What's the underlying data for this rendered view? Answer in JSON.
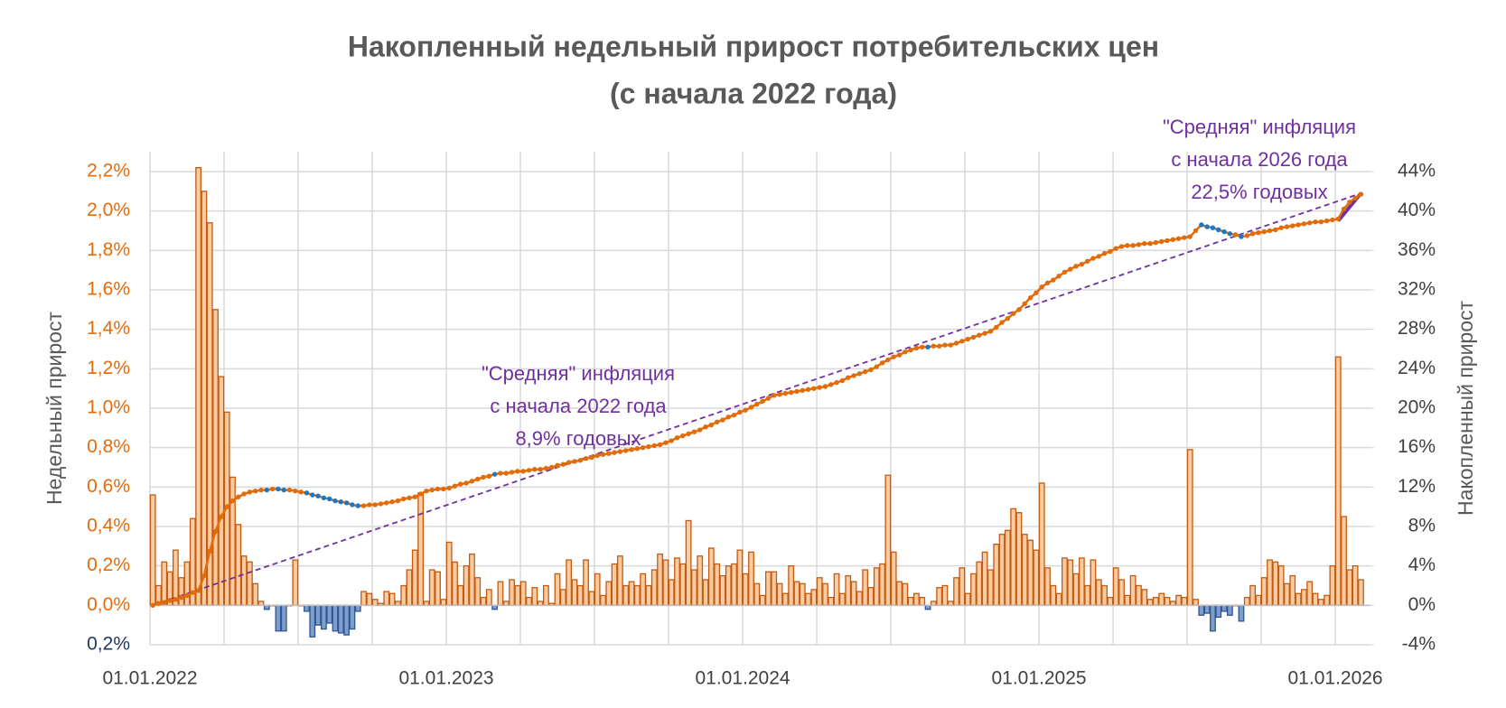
{
  "chart_data": {
    "type": "bar_line",
    "title": [
      "Накопленный недельный прирост потребительских цен",
      "(с начала 2022 года)"
    ],
    "y_label": "Недельный прирост",
    "y2_label": "Накопленный прирост",
    "categories": [
      "01.01.2022",
      null,
      null,
      null,
      null,
      null,
      null,
      null,
      null,
      null,
      null,
      null,
      null,
      null,
      null,
      null,
      null,
      null,
      null,
      null,
      null,
      null,
      null,
      null,
      null,
      null,
      null,
      null,
      null,
      null,
      null,
      null,
      null,
      null,
      null,
      null,
      null,
      null,
      null,
      null,
      null,
      null,
      null,
      null,
      null,
      null,
      null,
      null,
      null,
      null,
      null,
      null,
      "01.01.2023",
      null,
      null,
      null,
      null,
      null,
      null,
      null,
      null,
      null,
      null,
      null,
      null,
      null,
      null,
      null,
      null,
      null,
      null,
      null,
      null,
      null,
      null,
      null,
      null,
      null,
      null,
      null,
      null,
      null,
      null,
      null,
      null,
      null,
      null,
      null,
      null,
      null,
      null,
      null,
      null,
      null,
      null,
      null,
      null,
      null,
      null,
      null,
      null,
      null,
      null,
      null,
      "01.01.2024",
      null,
      null,
      null,
      null,
      null,
      null,
      null,
      null,
      null,
      null,
      null,
      null,
      null,
      null,
      null,
      null,
      null,
      null,
      null,
      null,
      null,
      null,
      null,
      null,
      null,
      null,
      null,
      null,
      null,
      null,
      null,
      null,
      null,
      null,
      null,
      null,
      null,
      null,
      null,
      null,
      null,
      null,
      null,
      null,
      null,
      null,
      null,
      null,
      null,
      null,
      null,
      "01.01.2025",
      null,
      null,
      null,
      null,
      null,
      null,
      null,
      null,
      null,
      null,
      null,
      null,
      null,
      null,
      null,
      null,
      null,
      null,
      null,
      null,
      null,
      null,
      null,
      null,
      null,
      null,
      null,
      null,
      null,
      null,
      null,
      null,
      null,
      null,
      null,
      null,
      null,
      null,
      null,
      null,
      null,
      null,
      null,
      null,
      null,
      null,
      null,
      null,
      null,
      null,
      null,
      "01.01.2026",
      null,
      null,
      null,
      null
    ],
    "series": [
      {
        "axis": "y",
        "color": "#f8cba0",
        "stroke": "#c55a11",
        "negative_color": "#7f9dc9",
        "negative_stroke": "#2e5597",
        "values": [
          0.56,
          0.1,
          0.22,
          0.17,
          0.28,
          0.14,
          0.22,
          0.44,
          2.22,
          2.1,
          1.94,
          1.5,
          1.16,
          0.98,
          0.65,
          0.41,
          0.25,
          0.22,
          0.11,
          0.02,
          -0.02,
          0.0,
          -0.13,
          -0.13,
          0.0,
          0.23,
          0.0,
          -0.03,
          -0.16,
          -0.1,
          -0.12,
          -0.09,
          -0.13,
          -0.14,
          -0.15,
          -0.12,
          -0.03,
          0.07,
          0.06,
          0.03,
          0.01,
          0.07,
          0.06,
          0.02,
          0.1,
          0.18,
          0.28,
          0.57,
          0.02,
          0.18,
          0.17,
          0.03,
          0.32,
          0.22,
          0.1,
          0.2,
          0.26,
          0.14,
          0.04,
          0.08,
          -0.02,
          0.12,
          0.02,
          0.13,
          0.1,
          0.12,
          0.04,
          0.09,
          0.02,
          0.1,
          0.01,
          0.16,
          0.08,
          0.23,
          0.13,
          0.1,
          0.23,
          0.07,
          0.16,
          0.05,
          0.12,
          0.21,
          0.25,
          0.1,
          0.12,
          0.1,
          0.16,
          0.1,
          0.18,
          0.26,
          0.23,
          0.13,
          0.24,
          0.21,
          0.43,
          0.18,
          0.25,
          0.13,
          0.29,
          0.21,
          0.15,
          0.2,
          0.21,
          0.28,
          0.16,
          0.27,
          0.11,
          0.05,
          0.17,
          0.17,
          0.11,
          0.06,
          0.2,
          0.12,
          0.11,
          0.06,
          0.08,
          0.14,
          0.11,
          0.04,
          0.16,
          0.06,
          0.15,
          0.12,
          0.07,
          0.18,
          0.09,
          0.19,
          0.21,
          0.66,
          0.27,
          0.12,
          0.11,
          0.04,
          0.06,
          0.04,
          -0.02,
          0.02,
          0.09,
          0.1,
          0.02,
          0.14,
          0.19,
          0.06,
          0.16,
          0.22,
          0.27,
          0.18,
          0.31,
          0.36,
          0.38,
          0.49,
          0.47,
          0.36,
          0.33,
          0.28,
          0.62,
          0.19,
          0.1,
          0.06,
          0.24,
          0.23,
          0.16,
          0.24,
          0.1,
          0.23,
          0.13,
          0.1,
          0.04,
          0.19,
          0.13,
          0.05,
          0.15,
          0.1,
          0.08,
          0.03,
          0.04,
          0.06,
          0.04,
          0.02,
          0.05,
          0.04,
          0.79,
          0.03,
          -0.05,
          -0.04,
          -0.13,
          -0.06,
          -0.03,
          -0.05,
          0.0,
          -0.08,
          0.04,
          0.1,
          0.05,
          0.14,
          0.23,
          0.22,
          0.2,
          0.11,
          0.15,
          0.06,
          0.08,
          0.12,
          0.06,
          0.03,
          0.05,
          0.2,
          1.26,
          0.45,
          0.18,
          0.2,
          0.13
        ]
      },
      {
        "axis": "y2",
        "color": "#e36c0a",
        "negative_color": "#1f77c4",
        "values": [
          0,
          0.2,
          0.3,
          0.5,
          0.6,
          0.8,
          1.0,
          1.3,
          1.5,
          3.0,
          5.5,
          7.5,
          9.0,
          10.0,
          10.6,
          11.0,
          11.3,
          11.5,
          11.6,
          11.7,
          11.7,
          11.8,
          11.8,
          11.7,
          11.7,
          11.6,
          11.5,
          11.4,
          11.2,
          11.1,
          10.9,
          10.8,
          10.6,
          10.5,
          10.4,
          10.2,
          10.1,
          10.1,
          10.2,
          10.2,
          10.3,
          10.4,
          10.5,
          10.6,
          10.8,
          10.9,
          11.0,
          11.3,
          11.6,
          11.7,
          11.8,
          11.8,
          11.9,
          12.1,
          12.3,
          12.4,
          12.6,
          12.8,
          13.0,
          13.1,
          13.3,
          13.4,
          13.4,
          13.5,
          13.6,
          13.6,
          13.7,
          13.8,
          13.8,
          13.9,
          14.0,
          14.2,
          14.3,
          14.5,
          14.6,
          14.7,
          14.9,
          15.0,
          15.2,
          15.3,
          15.4,
          15.5,
          15.6,
          15.7,
          15.8,
          15.9,
          16.0,
          16.1,
          16.2,
          16.3,
          16.5,
          16.7,
          17.0,
          17.2,
          17.4,
          17.6,
          17.8,
          18.1,
          18.3,
          18.6,
          18.8,
          19.1,
          19.3,
          19.6,
          19.8,
          20.1,
          20.4,
          20.7,
          21.0,
          21.3,
          21.4,
          21.5,
          21.6,
          21.7,
          21.8,
          21.9,
          22.0,
          22.1,
          22.2,
          22.4,
          22.6,
          22.8,
          23.1,
          23.3,
          23.5,
          23.7,
          23.9,
          24.2,
          24.6,
          24.9,
          25.2,
          25.4,
          25.7,
          25.9,
          26.1,
          26.2,
          26.2,
          26.3,
          26.3,
          26.4,
          26.4,
          26.6,
          26.8,
          27.0,
          27.2,
          27.4,
          27.6,
          27.8,
          28.2,
          28.7,
          29.1,
          29.6,
          30.0,
          30.6,
          31.2,
          31.7,
          32.3,
          32.7,
          33.0,
          33.4,
          33.8,
          34.1,
          34.4,
          34.6,
          34.9,
          35.2,
          35.4,
          35.7,
          35.9,
          36.2,
          36.4,
          36.5,
          36.5,
          36.6,
          36.7,
          36.7,
          36.8,
          36.9,
          37.0,
          37.1,
          37.2,
          37.3,
          37.4,
          38.0,
          38.6,
          38.4,
          38.3,
          38.1,
          37.9,
          37.7,
          37.6,
          37.4,
          37.5,
          37.7,
          37.8,
          37.9,
          38.0,
          38.1,
          38.3,
          38.4,
          38.5,
          38.6,
          38.7,
          38.8,
          38.9,
          38.9,
          39.0,
          39.1,
          39.2,
          40.2,
          40.9,
          41.3,
          41.7
        ]
      }
    ],
    "trends": [
      {
        "color": "#7030a0",
        "dashed": true,
        "from": [
          0,
          0
        ],
        "to": [
          212,
          41.8
        ]
      },
      {
        "color": "#7030a0",
        "dashed": false,
        "from": [
          208,
          39.0
        ],
        "to": [
          212,
          41.8
        ]
      }
    ],
    "annotations": [
      {
        "color": "#7030a0",
        "lines": [
          "\"Средняя\" инфляция",
          "с начала 2022 года",
          "8,9% годовых"
        ]
      },
      {
        "color": "#7030a0",
        "lines": [
          "\"Средняя\" инфляция",
          "с начала 2026 года",
          "22,5% годовых"
        ]
      }
    ],
    "ylim": [
      -0.2,
      2.2
    ],
    "yticks": [
      {
        "value": -0.2,
        "label": "0,2%"
      },
      {
        "value": 0,
        "label": "0,0%"
      },
      {
        "value": 0.2,
        "label": "0,2%"
      },
      {
        "value": 0.4,
        "label": "0,4%"
      },
      {
        "value": 0.6,
        "label": "0,6%"
      },
      {
        "value": 0.8,
        "label": "0,8%"
      },
      {
        "value": 1.0,
        "label": "1,0%"
      },
      {
        "value": 1.2,
        "label": "1,2%"
      },
      {
        "value": 1.4,
        "label": "1,4%"
      },
      {
        "value": 1.6,
        "label": "1,6%"
      },
      {
        "value": 1.8,
        "label": "1,8%"
      },
      {
        "value": 2.0,
        "label": "2,0%"
      },
      {
        "value": 2.2,
        "label": "2,2%"
      }
    ],
    "ytick_color": "#e46c0a",
    "ytick_negative_color": "#1f3864",
    "y2lim": [
      -4,
      44
    ],
    "y2ticks": [
      {
        "value": -4,
        "label": "-4%"
      },
      {
        "value": 0,
        "label": "0%"
      },
      {
        "value": 4,
        "label": "4%"
      },
      {
        "value": 8,
        "label": "8%"
      },
      {
        "value": 12,
        "label": "12%"
      },
      {
        "value": 16,
        "label": "16%"
      },
      {
        "value": 20,
        "label": "20%"
      },
      {
        "value": 24,
        "label": "24%"
      },
      {
        "value": 28,
        "label": "28%"
      },
      {
        "value": 32,
        "label": "32%"
      },
      {
        "value": 36,
        "label": "36%"
      },
      {
        "value": 40,
        "label": "40%"
      },
      {
        "value": 44,
        "label": "44%"
      }
    ],
    "grid": true
  }
}
